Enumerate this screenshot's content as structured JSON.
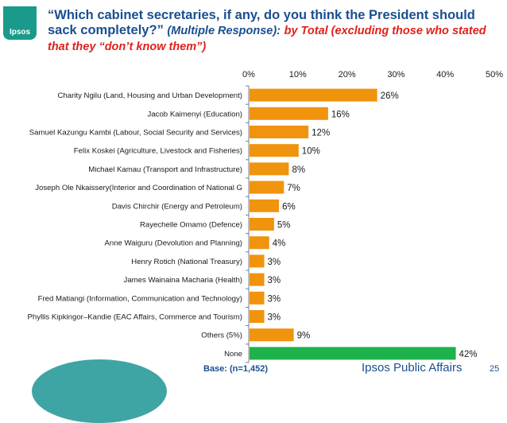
{
  "logo": {
    "text": "Ipsos"
  },
  "title": {
    "main": "“Which cabinet secretaries, if any, do you think the President should sack completely?”",
    "response": "(Multiple Response):",
    "filter": "by Total  (excluding those who stated that they “don’t know them”)"
  },
  "footer": {
    "base": "Base: (n=1,452)",
    "brand": "Ipsos Public Affairs",
    "page": "25"
  },
  "colors": {
    "bar": "#f0930d",
    "highlight": "#1db24b",
    "axis": "#595959",
    "text": "#1a1a1a"
  },
  "chart_data": {
    "type": "bar",
    "orientation": "horizontal",
    "xlim": [
      0,
      50
    ],
    "ticks": [
      "0%",
      "10%",
      "20%",
      "30%",
      "40%",
      "50%"
    ],
    "categories": [
      "Charity Ngilu (Land, Housing and Urban Development)",
      "Jacob Kaimenyi (Education)",
      "Samuel Kazungu Kambi (Labour, Social Security and Services)",
      "Felix Koskei (Agriculture, Livestock and Fisheries)",
      "Michael Kamau (Transport and Infrastructure)",
      "Joseph Ole Nkaissery(Interior and Coordination of National G",
      "Davis Chirchir (Energy and Petroleum)",
      "Rayechelle Omamo (Defence)",
      "Anne Waiguru (Devolution and Planning)",
      "Henry Rotich (National Treasury)",
      "James Wainaina Macharia (Health)",
      "Fred Matiangi (Information, Communication and Technology)",
      "Phyllis Kipkingor–Kandie (EAC Affairs, Commerce and Tourism)",
      "Others (5%)",
      "None"
    ],
    "values": [
      26,
      16,
      12,
      10,
      8,
      7,
      6,
      5,
      4,
      3,
      3,
      3,
      3,
      9,
      42
    ],
    "labels": [
      "26%",
      "16%",
      "12%",
      "10%",
      "8%",
      "7%",
      "6%",
      "5%",
      "4%",
      "3%",
      "3%",
      "3%",
      "3%",
      "9%",
      "42%"
    ],
    "highlight_index": 14
  }
}
